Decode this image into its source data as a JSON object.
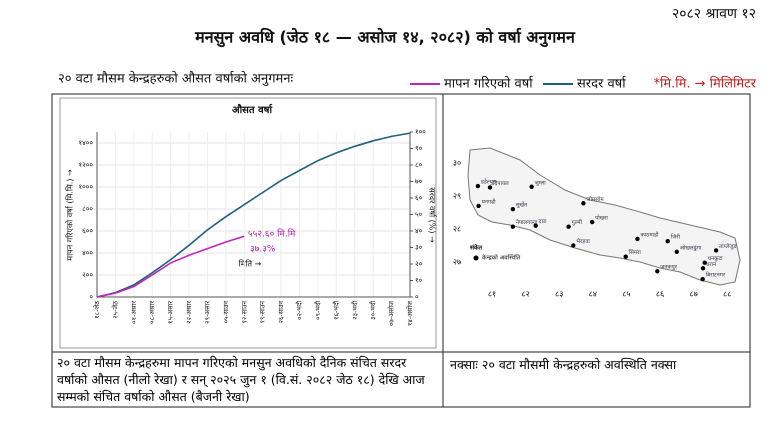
{
  "header": {
    "date": "२०८२ श्रावण १२",
    "title": "मनसुन अवधि (जेठ १८ — असोज १४, २०८२) को वर्षा अनुगमन",
    "subtitle": "२० वटा मौसम केन्द्रहरुको औसत वर्षाको अनुगमनः",
    "note": "*मि.मि. → मिलिमिटर"
  },
  "chart_data": {
    "type": "line",
    "title": "औसत वर्षा",
    "x_label": "मिति →",
    "y_label": "मापन गरिएको वर्षा (मि.मि.) →",
    "y2_label": "सरदर वर्षा (%) →",
    "categories": [
      "१८-जेठ",
      "२५-जेठ",
      "०१-असार",
      "०८-असार",
      "१५-असार",
      "२२-असार",
      "२९-असार",
      "०५-साउन",
      "१२-साउन",
      "१९-साउन",
      "२६-साउन",
      "०२-भदौ",
      "०९-भदौ",
      "१६-भदौ",
      "२३-भदौ",
      "३०-भदौ",
      "०७-असोज",
      "१४-असोज"
    ],
    "series": [
      {
        "name": "मापन गरिएको वर्षा",
        "color": "#c026b8",
        "values": [
          0,
          35,
          95,
          200,
          310,
          380,
          440,
          500,
          552.6,
          null,
          null,
          null,
          null,
          null,
          null,
          null,
          null,
          null
        ]
      },
      {
        "name": "सरदर वर्षा",
        "color": "#1f5f80",
        "values": [
          0,
          40,
          110,
          220,
          340,
          470,
          610,
          730,
          840,
          950,
          1060,
          1150,
          1240,
          1310,
          1370,
          1420,
          1460,
          1490
        ]
      }
    ],
    "ylim": [
      0,
      1500
    ],
    "yticks": [
      {
        "value": 0,
        "label": "०"
      },
      {
        "value": 200,
        "label": "२००"
      },
      {
        "value": 400,
        "label": "४००"
      },
      {
        "value": 600,
        "label": "६००"
      },
      {
        "value": 800,
        "label": "८००"
      },
      {
        "value": 1000,
        "label": "१०००"
      },
      {
        "value": 1200,
        "label": "१२००"
      },
      {
        "value": 1400,
        "label": "१४००"
      }
    ],
    "y2lim": [
      0,
      100
    ],
    "y2ticks": [
      {
        "value": 0,
        "label": "०"
      },
      {
        "value": 10,
        "label": "१०"
      },
      {
        "value": 20,
        "label": "२०"
      },
      {
        "value": 30,
        "label": "३०"
      },
      {
        "value": 40,
        "label": "४०"
      },
      {
        "value": 50,
        "label": "५०"
      },
      {
        "value": 60,
        "label": "६०"
      },
      {
        "value": 70,
        "label": "७०"
      },
      {
        "value": 80,
        "label": "८०"
      },
      {
        "value": 90,
        "label": "९०"
      },
      {
        "value": 100,
        "label": "१००"
      }
    ],
    "annotations": [
      "५५२.६० मि.मि",
      "३७.३%"
    ],
    "grid": true
  },
  "map": {
    "legend_title": "संकेत",
    "legend_label": "केन्द्रको अवस्थिति",
    "xticks": [
      {
        "value": 81,
        "label": "८१"
      },
      {
        "value": 82,
        "label": "८२"
      },
      {
        "value": 83,
        "label": "८३"
      },
      {
        "value": 84,
        "label": "८४"
      },
      {
        "value": 85,
        "label": "८५"
      },
      {
        "value": 86,
        "label": "८६"
      },
      {
        "value": 87,
        "label": "८७"
      },
      {
        "value": 88,
        "label": "८८"
      }
    ],
    "yticks": [
      {
        "value": 30,
        "label": "३०"
      },
      {
        "value": 29,
        "label": "२९"
      },
      {
        "value": 28,
        "label": "२८"
      },
      {
        "value": 27,
        "label": "२७"
      }
    ],
    "stations": [
      {
        "name": "डडेल्धुरा",
        "lon": 80.58,
        "lat": 29.3
      },
      {
        "name": "दिपायल",
        "lon": 80.94,
        "lat": 29.26
      },
      {
        "name": "धनगढी",
        "lon": 80.6,
        "lat": 28.7
      },
      {
        "name": "जुम्ला",
        "lon": 82.18,
        "lat": 29.28
      },
      {
        "name": "सुर्खेत",
        "lon": 81.62,
        "lat": 28.6
      },
      {
        "name": "नेपालगञ्ज",
        "lon": 81.62,
        "lat": 28.07
      },
      {
        "name": "दाङ",
        "lon": 82.3,
        "lat": 28.1
      },
      {
        "name": "जोमसोम",
        "lon": 83.72,
        "lat": 28.78
      },
      {
        "name": "पोखरा",
        "lon": 83.98,
        "lat": 28.21
      },
      {
        "name": "गुल्मी",
        "lon": 83.28,
        "lat": 28.07
      },
      {
        "name": "भैरहवा",
        "lon": 83.42,
        "lat": 27.5
      },
      {
        "name": "सिमरा",
        "lon": 84.98,
        "lat": 27.16
      },
      {
        "name": "काठमाडौं",
        "lon": 85.33,
        "lat": 27.7
      },
      {
        "name": "जनकपुर",
        "lon": 85.92,
        "lat": 26.72
      },
      {
        "name": "जिरी",
        "lon": 86.23,
        "lat": 27.63
      },
      {
        "name": "ओखलढुंगा",
        "lon": 86.5,
        "lat": 27.31
      },
      {
        "name": "ताप्लेजुङ",
        "lon": 87.67,
        "lat": 27.35
      },
      {
        "name": "धनकुटा",
        "lon": 87.33,
        "lat": 26.98
      },
      {
        "name": "धरान",
        "lon": 87.28,
        "lat": 26.81
      },
      {
        "name": "बिराटनगर",
        "lon": 87.27,
        "lat": 26.48
      }
    ]
  },
  "captions": {
    "chart": "२० वटा मौसम केन्द्रहरुमा मापन गरिएको मनसुन अवधिको दैनिक संचित सरदर वर्षाको औसत (नीलो रेखा) र सन् २०२५ जुन १ (वि.सं. २०८२ जेठ १८) देखि आज सम्मको संचित वर्षाको औसत (बैजनी रेखा)",
    "map": "नक्साः २० वटा मौसमी केन्द्रहरुको अवस्थिति नक्सा"
  }
}
